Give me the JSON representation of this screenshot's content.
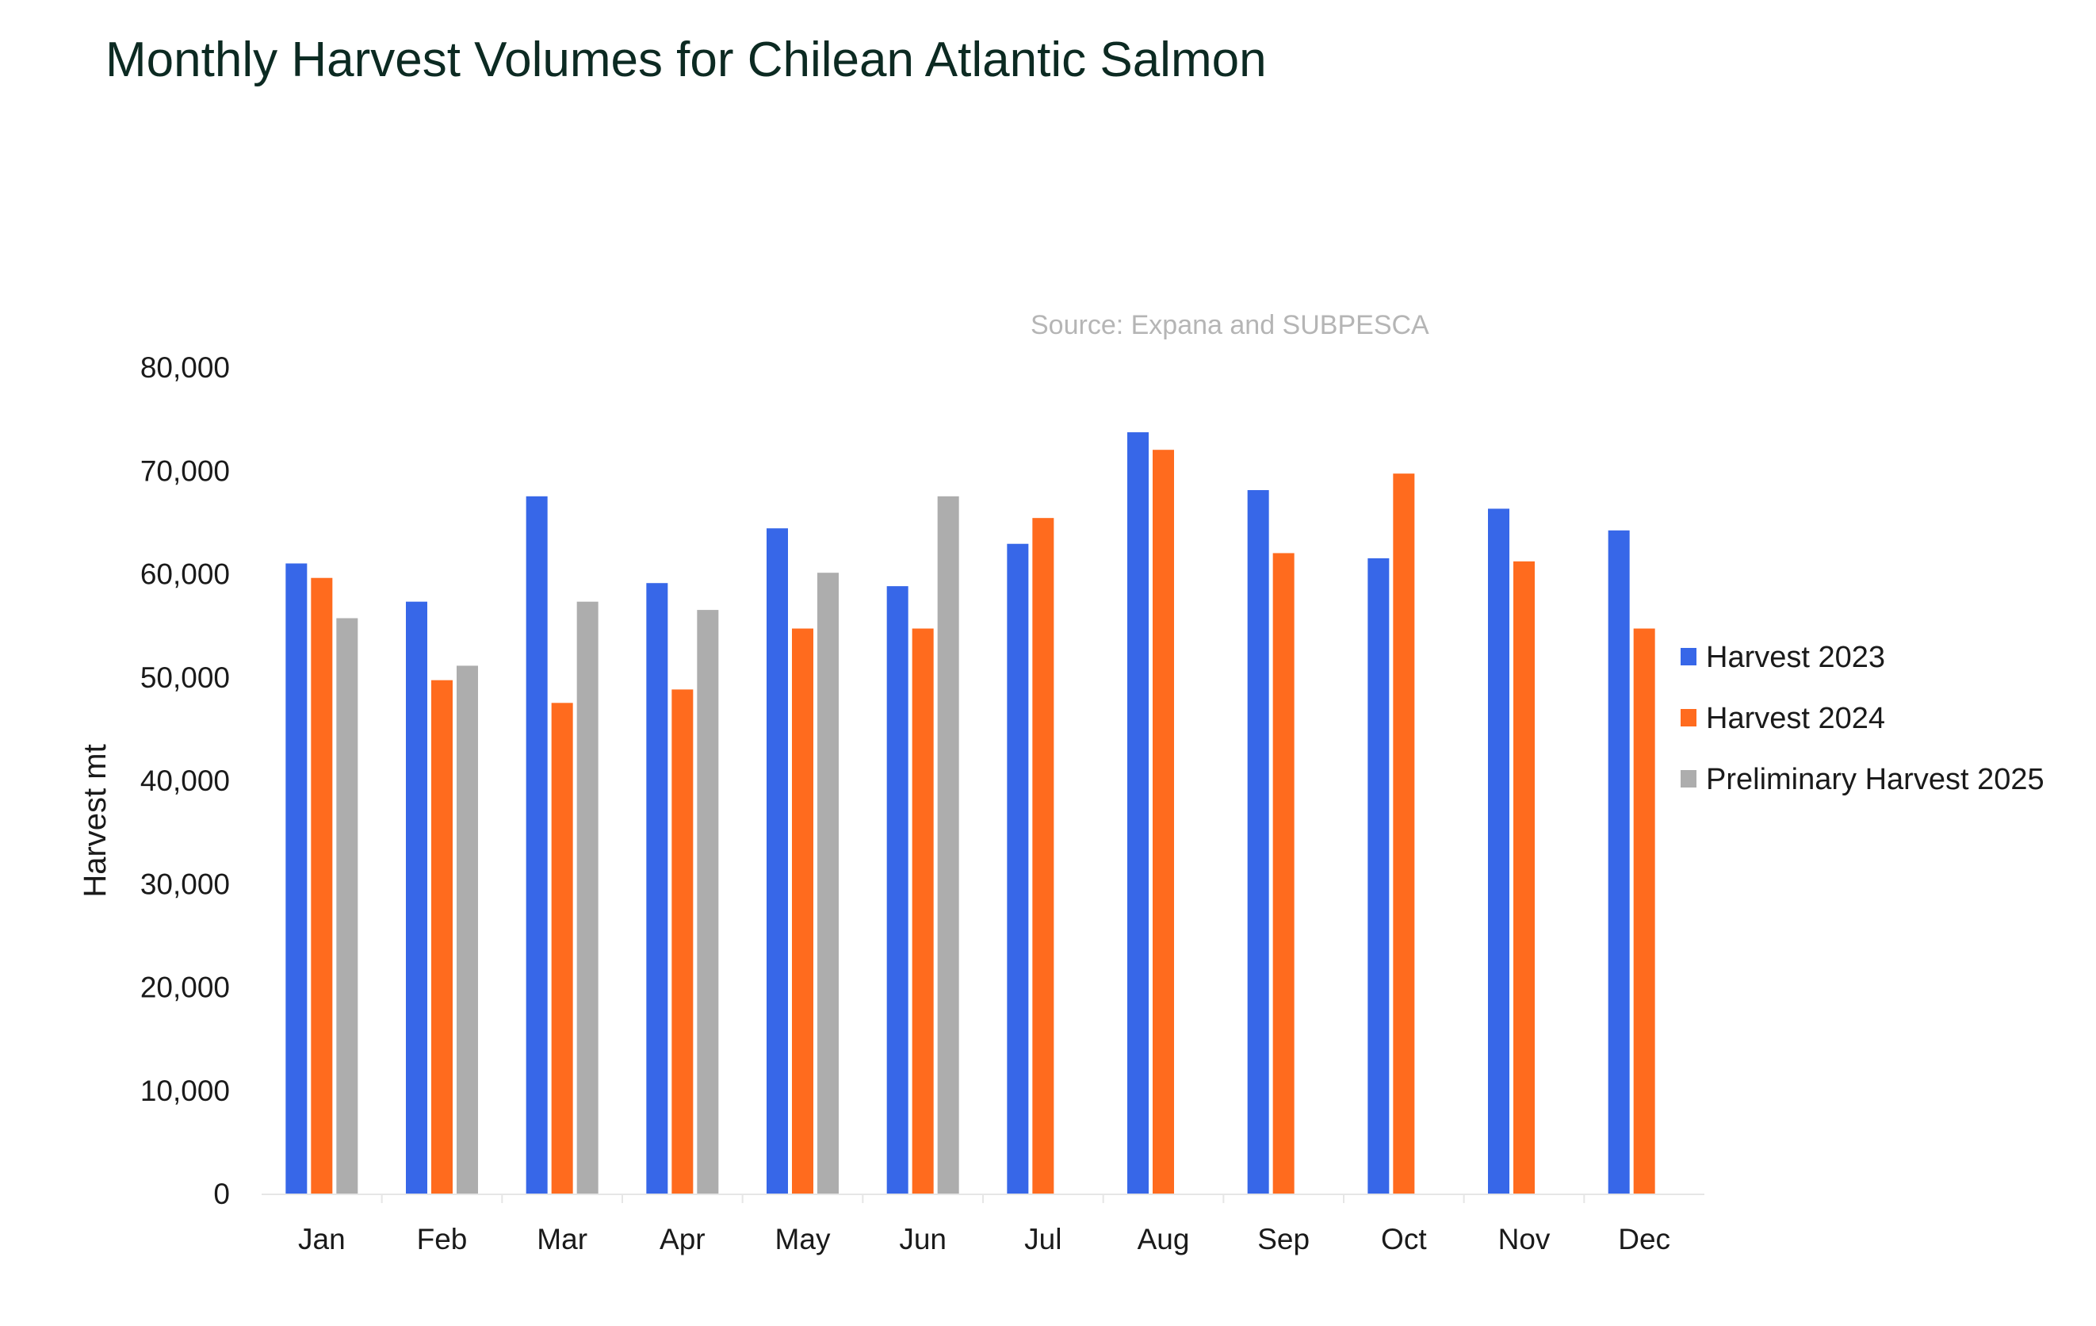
{
  "chart_data": {
    "type": "bar",
    "title": "Monthly Harvest Volumes for Chilean Atlantic Salmon",
    "annotation": "Source: Expana and SUBPESCA",
    "xlabel": "",
    "ylabel": "Harvest  mt",
    "ylim": [
      0,
      80000
    ],
    "yticks": [
      0,
      10000,
      20000,
      30000,
      40000,
      50000,
      60000,
      70000,
      80000
    ],
    "ytick_labels": [
      "0",
      "10,000",
      "20,000",
      "30,000",
      "40,000",
      "50,000",
      "60,000",
      "70,000",
      "80,000"
    ],
    "grid": false,
    "legend_position": "right",
    "categories": [
      "Jan",
      "Feb",
      "Mar",
      "Apr",
      "May",
      "Jun",
      "Jul",
      "Aug",
      "Sep",
      "Oct",
      "Nov",
      "Dec"
    ],
    "series": [
      {
        "name": "Harvest 2023",
        "color": "#3767e8",
        "values": [
          61000,
          57300,
          67500,
          59100,
          64400,
          58800,
          62900,
          73700,
          68100,
          61500,
          66300,
          64200
        ]
      },
      {
        "name": "Harvest 2024",
        "color": "#ff6b1e",
        "values": [
          59600,
          49700,
          47500,
          48800,
          54700,
          54700,
          65400,
          72000,
          62000,
          69700,
          61200,
          54700
        ]
      },
      {
        "name": "Preliminary Harvest  2025",
        "color": "#adadad",
        "values": [
          55700,
          51100,
          57300,
          56500,
          60100,
          67500,
          null,
          null,
          null,
          null,
          null,
          null
        ]
      }
    ]
  }
}
